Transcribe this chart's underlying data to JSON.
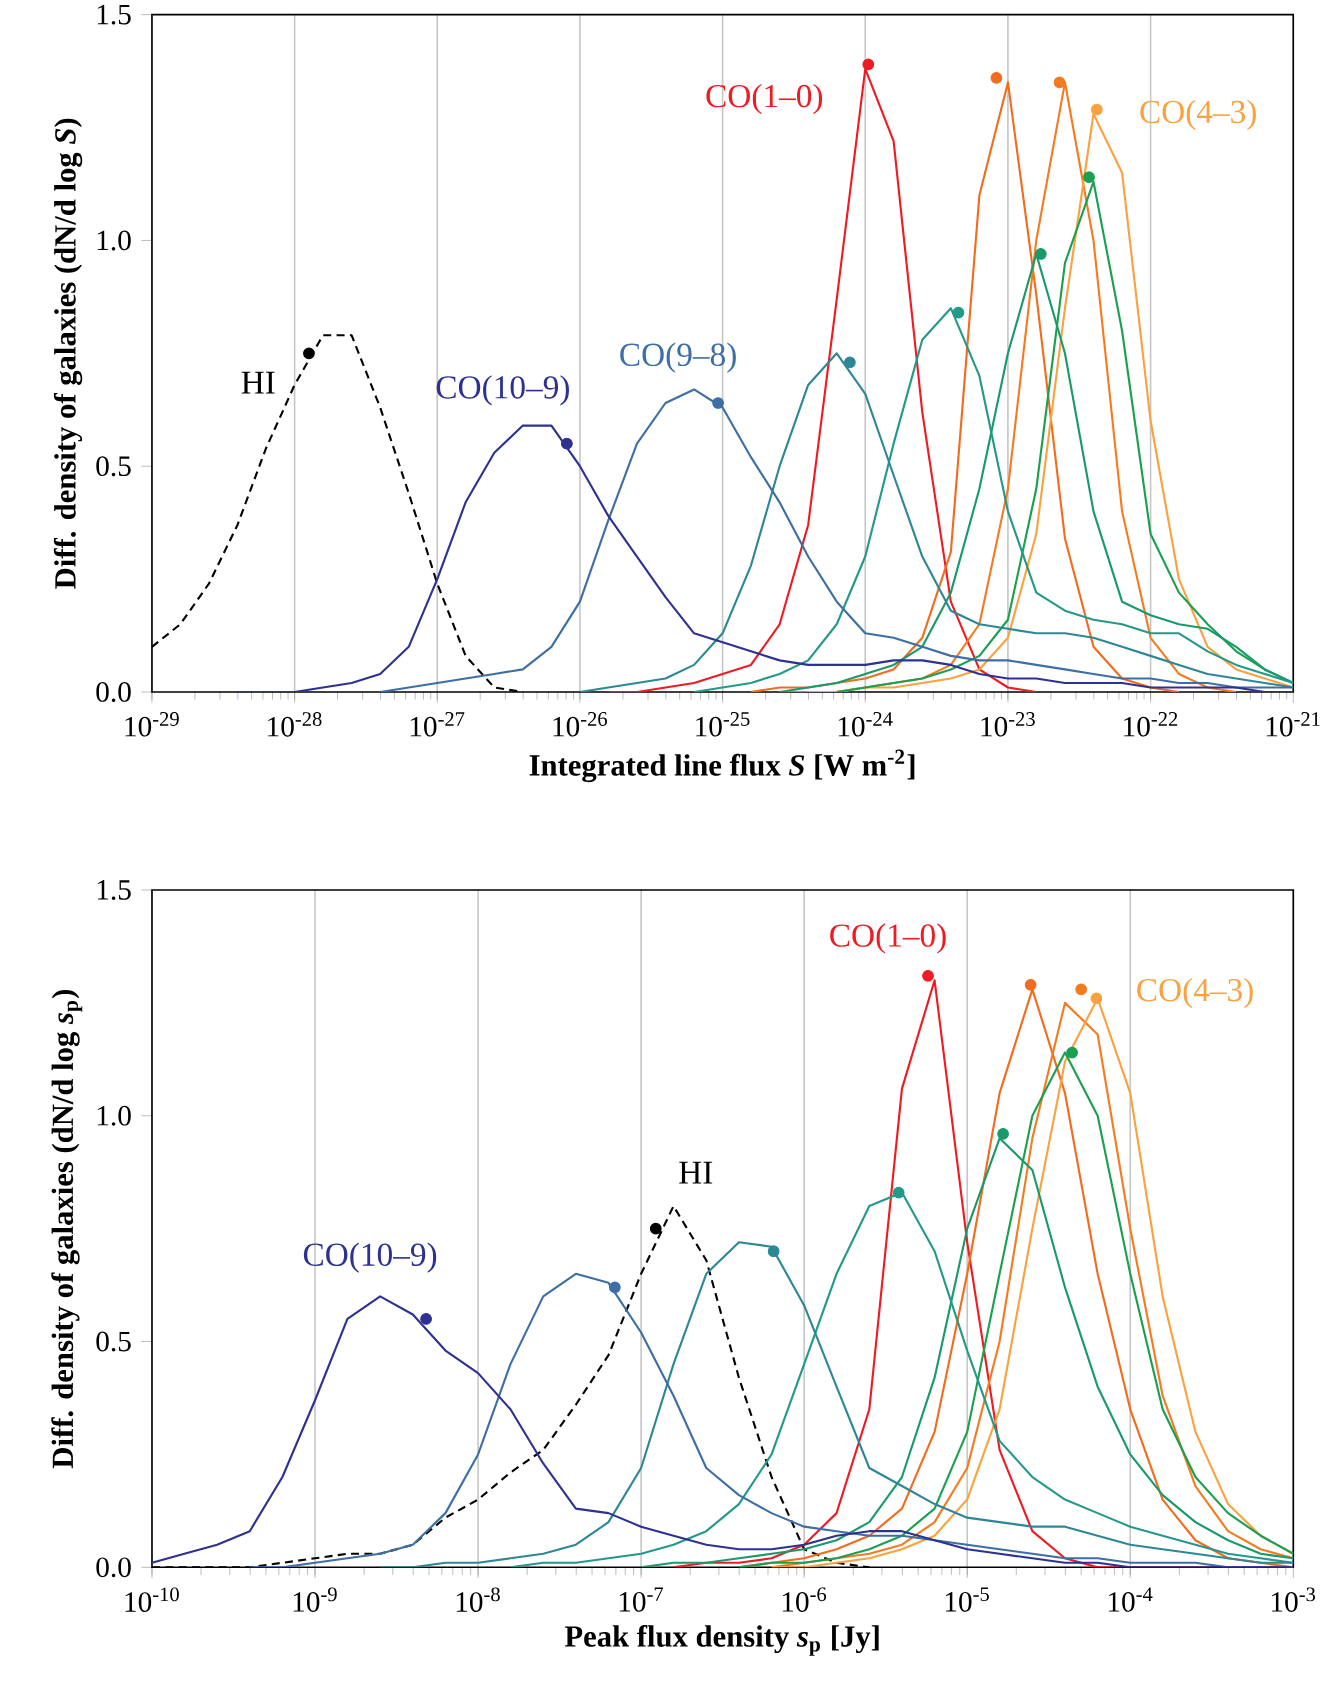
{
  "chart_data": [
    {
      "type": "line",
      "xlabel": "Integrated line flux *S* [W m$^{-2}$]",
      "ylabel": "Diff. density of galaxies (dN/d log *S*)",
      "log": "x",
      "grid": "x",
      "xlim": [
        1e-29,
        1e-21
      ],
      "ylim": [
        0,
        1.5
      ],
      "xticks": [
        {
          "value": 1e-29,
          "label": "10$^{-29}$"
        },
        {
          "value": 1e-28,
          "label": "10$^{-28}$"
        },
        {
          "value": 1e-27,
          "label": "10$^{-27}$"
        },
        {
          "value": 1e-26,
          "label": "10$^{-26}$"
        },
        {
          "value": 1e-25,
          "label": "10$^{-25}$"
        },
        {
          "value": 1e-24,
          "label": "10$^{-24}$"
        },
        {
          "value": 1e-23,
          "label": "10$^{-23}$"
        },
        {
          "value": 1e-22,
          "label": "10$^{-22}$"
        },
        {
          "value": 1e-21,
          "label": "10$^{-21}$"
        }
      ],
      "yticks": [
        {
          "value": 0,
          "label": "0.0"
        },
        {
          "value": 0.5,
          "label": "0.5"
        },
        {
          "value": 1.0,
          "label": "1.0"
        },
        {
          "value": 1.5,
          "label": "1.5"
        }
      ],
      "x": [
        1e-29,
        1.58e-29,
        2.51e-29,
        3.98e-29,
        6.31e-29,
        1e-28,
        1.58e-28,
        2.51e-28,
        3.98e-28,
        6.31e-28,
        1e-27,
        1.58e-27,
        2.51e-27,
        3.98e-27,
        6.31e-27,
        1e-26,
        1.58e-26,
        2.51e-26,
        3.98e-26,
        6.31e-26,
        1e-25,
        1.58e-25,
        2.51e-25,
        3.98e-25,
        6.31e-25,
        1e-24,
        1.58e-24,
        2.51e-24,
        3.98e-24,
        6.31e-24,
        1e-23,
        1.58e-23,
        2.51e-23,
        3.98e-23,
        6.31e-23,
        1e-22,
        1.58e-22,
        2.51e-22,
        3.98e-22,
        6.31e-22,
        1e-21
      ],
      "series": [
        {
          "name": "HI",
          "color": "#000000",
          "line_style": "dashed",
          "values": [
            0.1,
            0.15,
            0.24,
            0.37,
            0.54,
            0.68,
            0.79,
            0.79,
            0.63,
            0.44,
            0.24,
            0.08,
            0.01,
            0.0,
            null,
            null,
            null,
            null,
            null,
            null,
            null,
            null,
            null,
            null,
            null,
            null,
            null,
            null,
            null,
            null,
            null,
            null,
            null,
            null,
            null,
            null,
            null,
            null,
            null,
            null,
            null
          ]
        },
        {
          "name": "CO(1–0)",
          "color": "#ed1c24",
          "values": [
            null,
            null,
            null,
            null,
            null,
            null,
            null,
            null,
            null,
            null,
            null,
            null,
            null,
            null,
            null,
            null,
            0.0,
            0.0,
            0.01,
            0.02,
            0.04,
            0.06,
            0.15,
            0.37,
            0.87,
            1.38,
            1.22,
            0.62,
            0.2,
            0.05,
            0.01,
            0.0,
            null,
            null,
            null,
            null,
            null,
            null,
            null,
            null,
            null
          ]
        },
        {
          "color": "#f26c1f",
          "values": [
            null,
            null,
            null,
            null,
            null,
            null,
            null,
            null,
            null,
            null,
            null,
            null,
            null,
            null,
            null,
            null,
            null,
            null,
            null,
            null,
            null,
            0.0,
            0.01,
            0.01,
            0.02,
            0.03,
            0.05,
            0.12,
            0.31,
            1.1,
            1.35,
            0.88,
            0.34,
            0.1,
            0.03,
            0.01,
            0.0,
            null,
            null,
            null,
            null
          ]
        },
        {
          "color": "#f47b20",
          "values": [
            null,
            null,
            null,
            null,
            null,
            null,
            null,
            null,
            null,
            null,
            null,
            null,
            null,
            null,
            null,
            null,
            null,
            null,
            null,
            null,
            null,
            null,
            0.0,
            0.0,
            0.0,
            0.01,
            0.02,
            0.03,
            0.06,
            0.15,
            0.45,
            1.0,
            1.35,
            1.0,
            0.4,
            0.12,
            0.04,
            0.01,
            0.0,
            null,
            null
          ]
        },
        {
          "name": "CO(4–3)",
          "color": "#f9a23f",
          "values": [
            null,
            null,
            null,
            null,
            null,
            null,
            null,
            null,
            null,
            null,
            null,
            null,
            null,
            null,
            null,
            null,
            null,
            null,
            null,
            null,
            null,
            null,
            null,
            0.0,
            0.0,
            0.01,
            0.01,
            0.02,
            0.03,
            0.05,
            0.12,
            0.35,
            0.85,
            1.28,
            1.15,
            0.6,
            0.25,
            0.1,
            0.05,
            0.03,
            0.01
          ]
        },
        {
          "color": "#1aa050",
          "values": [
            null,
            null,
            null,
            null,
            null,
            null,
            null,
            null,
            null,
            null,
            null,
            null,
            null,
            null,
            null,
            null,
            null,
            null,
            null,
            null,
            null,
            null,
            null,
            null,
            0.0,
            0.01,
            0.02,
            0.03,
            0.05,
            0.08,
            0.16,
            0.45,
            0.95,
            1.13,
            0.8,
            0.35,
            0.22,
            0.15,
            0.09,
            0.05,
            0.02
          ]
        },
        {
          "color": "#1a9a6a",
          "values": [
            null,
            null,
            null,
            null,
            null,
            null,
            null,
            null,
            null,
            null,
            null,
            null,
            null,
            null,
            null,
            null,
            null,
            null,
            null,
            null,
            null,
            null,
            0.0,
            0.01,
            0.02,
            0.04,
            0.06,
            0.1,
            0.22,
            0.45,
            0.75,
            0.97,
            0.75,
            0.4,
            0.2,
            0.17,
            0.15,
            0.14,
            0.1,
            0.05,
            0.02
          ]
        },
        {
          "color": "#24998a",
          "values": [
            null,
            null,
            null,
            null,
            null,
            null,
            null,
            null,
            null,
            null,
            null,
            null,
            null,
            null,
            null,
            null,
            null,
            null,
            null,
            0.0,
            0.01,
            0.02,
            0.04,
            0.07,
            0.15,
            0.3,
            0.55,
            0.78,
            0.85,
            0.7,
            0.4,
            0.22,
            0.18,
            0.16,
            0.15,
            0.13,
            0.13,
            0.09,
            0.06,
            0.04,
            0.02
          ]
        },
        {
          "color": "#2d8896",
          "values": [
            null,
            null,
            null,
            null,
            null,
            null,
            null,
            null,
            null,
            null,
            null,
            null,
            null,
            null,
            null,
            0.0,
            0.01,
            0.02,
            0.03,
            0.06,
            0.13,
            0.28,
            0.5,
            0.68,
            0.75,
            0.66,
            0.48,
            0.3,
            0.18,
            0.15,
            0.14,
            0.13,
            0.13,
            0.12,
            0.1,
            0.08,
            0.06,
            0.04,
            0.03,
            0.02,
            0.01
          ]
        },
        {
          "name": "CO(9–8)",
          "color": "#3d6fa5",
          "values": [
            null,
            null,
            null,
            null,
            null,
            null,
            null,
            null,
            0.0,
            0.01,
            0.02,
            0.03,
            0.04,
            0.05,
            0.1,
            0.2,
            0.38,
            0.55,
            0.64,
            0.67,
            0.63,
            0.52,
            0.42,
            0.3,
            0.2,
            0.13,
            0.12,
            0.1,
            0.08,
            0.07,
            0.07,
            0.06,
            0.05,
            0.04,
            0.03,
            0.03,
            0.02,
            0.02,
            0.01,
            0.01,
            0.01
          ]
        },
        {
          "name": "CO(10–9)",
          "color": "#2e3192",
          "values": [
            null,
            null,
            null,
            0.0,
            0.0,
            0.0,
            0.01,
            0.02,
            0.04,
            0.1,
            0.25,
            0.42,
            0.53,
            0.59,
            0.59,
            0.5,
            0.39,
            0.3,
            0.21,
            0.13,
            0.11,
            0.09,
            0.07,
            0.06,
            0.06,
            0.06,
            0.07,
            0.07,
            0.06,
            0.04,
            0.03,
            0.03,
            0.02,
            0.02,
            0.02,
            0.01,
            0.01,
            0.01,
            0.01,
            0.0,
            0.0
          ]
        },
        {
          "type": "scatter",
          "marker": "circle",
          "x": [
            1.26e-28,
            1.05e-24,
            8.3e-24,
            2.3e-23,
            4.2e-23,
            3.7e-23,
            1.7e-23,
            4.5e-24,
            7.8e-25,
            9.3e-26,
            8.1e-27
          ],
          "values": [
            0.75,
            1.39,
            1.36,
            1.35,
            1.29,
            1.14,
            0.97,
            0.84,
            0.73,
            0.64,
            0.55
          ],
          "colors": [
            "#000000",
            "#ed1c24",
            "#f26c1f",
            "#f47b20",
            "#f9a23f",
            "#1aa050",
            "#1a9a6a",
            "#24998a",
            "#2d8896",
            "#3d6fa5",
            "#2e3192"
          ]
        }
      ]
    },
    {
      "type": "line",
      "xlabel": "Peak flux density *s*$_{p}$ [Jy]",
      "ylabel": "Diff. density of galaxies (dN/d log *s*$_{p}$)",
      "log": "x",
      "grid": "x",
      "xlim": [
        1e-10,
        0.001
      ],
      "ylim": [
        0,
        1.5
      ],
      "xticks": [
        {
          "value": 1e-10,
          "label": "10$^{-10}$"
        },
        {
          "value": 1e-09,
          "label": "10$^{-9}$"
        },
        {
          "value": 1e-08,
          "label": "10$^{-8}$"
        },
        {
          "value": 1e-07,
          "label": "10$^{-7}$"
        },
        {
          "value": 1e-06,
          "label": "10$^{-6}$"
        },
        {
          "value": 1e-05,
          "label": "10$^{-5}$"
        },
        {
          "value": 0.0001,
          "label": "10$^{-4}$"
        },
        {
          "value": 0.001,
          "label": "10$^{-3}$"
        }
      ],
      "yticks": [
        {
          "value": 0,
          "label": "0.0"
        },
        {
          "value": 0.5,
          "label": "0.5"
        },
        {
          "value": 1.0,
          "label": "1.0"
        },
        {
          "value": 1.5,
          "label": "1.5"
        }
      ],
      "x": [
        1e-10,
        1.58e-10,
        2.51e-10,
        3.98e-10,
        6.31e-10,
        1e-09,
        1.58e-09,
        2.51e-09,
        3.98e-09,
        6.31e-09,
        1e-08,
        1.58e-08,
        2.51e-08,
        3.98e-08,
        6.31e-08,
        1e-07,
        1.58e-07,
        2.51e-07,
        3.98e-07,
        6.31e-07,
        1e-06,
        1.58e-06,
        2.51e-06,
        3.98e-06,
        6.31e-06,
        1e-05,
        1.58e-05,
        2.51e-05,
        3.98e-05,
        6.31e-05,
        0.0001,
        0.000158,
        0.000251,
        0.000398,
        0.000631,
        0.001
      ],
      "series": [
        {
          "name": "HI",
          "color": "#000000",
          "line_style": "dashed",
          "values": [
            0.0,
            0.0,
            0.0,
            0.0,
            0.01,
            0.02,
            0.03,
            0.03,
            0.05,
            0.11,
            0.15,
            0.21,
            0.26,
            0.36,
            0.47,
            0.65,
            0.8,
            0.68,
            0.42,
            0.2,
            0.04,
            0.01,
            0.0,
            null,
            null,
            null,
            null,
            null,
            null,
            null,
            null,
            null,
            null,
            null,
            null,
            null
          ]
        },
        {
          "name": "CO(1–0)",
          "color": "#ed1c24",
          "values": [
            null,
            null,
            null,
            null,
            null,
            null,
            null,
            null,
            null,
            null,
            null,
            null,
            null,
            null,
            null,
            null,
            0.0,
            0.01,
            0.01,
            0.02,
            0.05,
            0.12,
            0.35,
            1.06,
            1.3,
            0.72,
            0.26,
            0.08,
            0.02,
            0.0,
            0.0,
            0.0,
            0.0,
            0.0,
            0.0,
            0.0
          ]
        },
        {
          "color": "#f26c1f",
          "values": [
            null,
            null,
            null,
            null,
            null,
            null,
            null,
            null,
            null,
            null,
            null,
            null,
            null,
            null,
            null,
            null,
            null,
            null,
            0.0,
            0.01,
            0.02,
            0.04,
            0.07,
            0.13,
            0.3,
            0.65,
            1.05,
            1.28,
            1.05,
            0.65,
            0.35,
            0.15,
            0.06,
            0.02,
            0.01,
            0.0
          ]
        },
        {
          "color": "#f47b20",
          "values": [
            null,
            null,
            null,
            null,
            null,
            null,
            null,
            null,
            null,
            null,
            null,
            null,
            null,
            null,
            null,
            null,
            null,
            null,
            null,
            0.0,
            0.01,
            0.02,
            0.03,
            0.05,
            0.1,
            0.22,
            0.5,
            0.95,
            1.25,
            1.18,
            0.75,
            0.38,
            0.18,
            0.08,
            0.04,
            0.02
          ]
        },
        {
          "name": "CO(4–3)",
          "color": "#f9a23f",
          "values": [
            null,
            null,
            null,
            null,
            null,
            null,
            null,
            null,
            null,
            null,
            null,
            null,
            null,
            null,
            null,
            null,
            null,
            null,
            null,
            0.0,
            0.0,
            0.01,
            0.02,
            0.04,
            0.07,
            0.15,
            0.35,
            0.75,
            1.12,
            1.26,
            1.05,
            0.6,
            0.3,
            0.14,
            0.07,
            0.03
          ]
        },
        {
          "color": "#1aa050",
          "values": [
            null,
            null,
            null,
            null,
            null,
            null,
            null,
            null,
            null,
            null,
            null,
            null,
            null,
            null,
            null,
            null,
            null,
            null,
            0.0,
            0.01,
            0.01,
            0.02,
            0.04,
            0.07,
            0.13,
            0.3,
            0.65,
            1.0,
            1.14,
            1.0,
            0.65,
            0.35,
            0.2,
            0.12,
            0.07,
            0.03
          ]
        },
        {
          "color": "#1a9a6a",
          "values": [
            null,
            null,
            null,
            null,
            null,
            null,
            null,
            null,
            null,
            null,
            null,
            null,
            null,
            null,
            null,
            0.0,
            0.01,
            0.01,
            0.02,
            0.03,
            0.04,
            0.06,
            0.1,
            0.2,
            0.42,
            0.75,
            0.95,
            0.88,
            0.62,
            0.4,
            0.25,
            0.16,
            0.1,
            0.06,
            0.03,
            0.02
          ]
        },
        {
          "color": "#24998a",
          "values": [
            null,
            null,
            null,
            null,
            null,
            null,
            null,
            null,
            null,
            null,
            null,
            0.0,
            0.01,
            0.01,
            0.02,
            0.03,
            0.05,
            0.08,
            0.14,
            0.25,
            0.45,
            0.65,
            0.8,
            0.83,
            0.7,
            0.48,
            0.28,
            0.2,
            0.15,
            0.12,
            0.09,
            0.07,
            0.05,
            0.03,
            0.02,
            0.01
          ]
        },
        {
          "color": "#2d8896",
          "values": [
            null,
            null,
            null,
            null,
            null,
            null,
            null,
            0.0,
            0.0,
            0.01,
            0.01,
            0.02,
            0.03,
            0.05,
            0.1,
            0.22,
            0.45,
            0.65,
            0.72,
            0.71,
            0.58,
            0.4,
            0.22,
            0.18,
            0.14,
            0.11,
            0.1,
            0.09,
            0.09,
            0.07,
            0.05,
            0.04,
            0.03,
            0.02,
            0.01,
            0.01
          ]
        },
        {
          "color": "#3d6fa5",
          "values": [
            null,
            null,
            null,
            0.0,
            0.0,
            0.01,
            0.02,
            0.03,
            0.05,
            0.12,
            0.25,
            0.45,
            0.6,
            0.65,
            0.63,
            0.52,
            0.38,
            0.22,
            0.16,
            0.12,
            0.09,
            0.08,
            0.07,
            0.07,
            0.06,
            0.05,
            0.04,
            0.03,
            0.02,
            0.02,
            0.01,
            0.01,
            0.01,
            0.0,
            0.0,
            0.0
          ]
        },
        {
          "name": "CO(10–9)",
          "color": "#2e3192",
          "values": [
            0.01,
            0.03,
            0.05,
            0.08,
            0.2,
            0.37,
            0.55,
            0.6,
            0.56,
            0.48,
            0.43,
            0.35,
            0.23,
            0.13,
            0.12,
            0.09,
            0.07,
            0.05,
            0.04,
            0.04,
            0.05,
            0.07,
            0.08,
            0.08,
            0.06,
            0.04,
            0.03,
            0.02,
            0.01,
            0.01,
            0.0,
            0.0,
            0.0,
            0.0,
            0.0,
            0.0
          ]
        },
        {
          "type": "scatter",
          "marker": "circle",
          "x": [
            1.23e-07,
            5.75e-06,
            2.45e-05,
            5e-05,
            6.2e-05,
            4.4e-05,
            1.66e-05,
            3.8e-06,
            6.5e-07,
            6.9e-08,
            4.8e-09
          ],
          "values": [
            0.75,
            1.31,
            1.29,
            1.28,
            1.26,
            1.14,
            0.96,
            0.83,
            0.7,
            0.62,
            0.55
          ],
          "colors": [
            "#000000",
            "#ed1c24",
            "#f26c1f",
            "#f47b20",
            "#f9a23f",
            "#1aa050",
            "#1a9a6a",
            "#24998a",
            "#2d8896",
            "#3d6fa5",
            "#2e3192"
          ]
        }
      ]
    }
  ]
}
